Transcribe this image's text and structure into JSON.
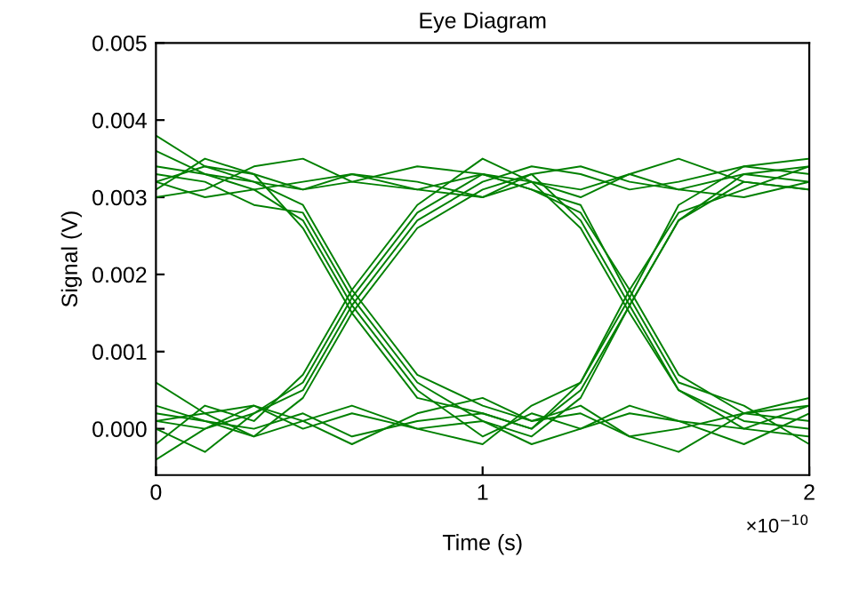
{
  "chart_data": {
    "type": "line",
    "title": "Eye Diagram",
    "xlabel": "Time (s)",
    "ylabel": "Signal (V)",
    "annotations": [
      "×10$^{−10}$"
    ],
    "x": [
      0,
      0.15,
      0.3,
      0.45,
      0.6,
      0.8,
      1.0,
      1.15,
      1.3,
      1.45,
      1.6,
      1.8,
      2.0
    ],
    "xlim": [
      0,
      2
    ],
    "xticks": [
      0,
      1,
      2
    ],
    "ylim": [
      -0.0006,
      0.005
    ],
    "yticks": [
      {
        "value": 0,
        "label": "0.000"
      },
      {
        "value": 0.001,
        "label": "0.001"
      },
      {
        "value": 0.002,
        "label": "0.002"
      },
      {
        "value": 0.003,
        "label": "0.003"
      },
      {
        "value": 0.004,
        "label": "0.004"
      },
      {
        "value": 0.005,
        "label": "0.005"
      }
    ],
    "grid": false,
    "legend": false,
    "marker": "none",
    "line_style": "solid",
    "series": [
      {
        "color": "#008000",
        "values": [
          0.0034,
          0.0033,
          0.0032,
          0.0031,
          0.0033,
          0.0032,
          0.003,
          0.0033,
          0.0034,
          0.0032,
          0.0031,
          0.0033,
          0.0034
        ]
      },
      {
        "color": "#008000",
        "values": [
          0.003,
          0.0031,
          0.0034,
          0.0035,
          0.0032,
          0.0031,
          0.0033,
          0.0032,
          0.003,
          0.0033,
          0.0035,
          0.0032,
          0.0031
        ]
      },
      {
        "color": "#008000",
        "values": [
          0.0032,
          0.0034,
          0.0033,
          0.0031,
          0.0032,
          0.0034,
          0.0033,
          0.0031,
          0.0028,
          0.0018,
          0.0007,
          0.0002,
          0.0001
        ]
      },
      {
        "color": "#008000",
        "values": [
          0.0036,
          0.0033,
          0.0031,
          0.0032,
          0.0033,
          0.0031,
          0.003,
          0.0032,
          0.0026,
          0.0015,
          0.0005,
          0.0,
          0.0003
        ]
      },
      {
        "color": "#008000",
        "values": [
          0.0033,
          0.0032,
          0.0029,
          0.0028,
          0.0017,
          0.0006,
          0.0001,
          -0.0001,
          0.0004,
          0.0016,
          0.0027,
          0.0033,
          0.0032
        ]
      },
      {
        "color": "#008000",
        "values": [
          0.0031,
          0.0035,
          0.0033,
          0.0026,
          0.0015,
          0.0004,
          0.0002,
          0.0,
          0.0006,
          0.0018,
          0.0028,
          0.0031,
          0.0034
        ]
      },
      {
        "color": "#008000",
        "values": [
          0.0032,
          0.003,
          0.0031,
          0.0027,
          0.0016,
          0.0005,
          -0.0001,
          0.0002,
          0.0,
          0.0003,
          0.0001,
          -0.0002,
          0.0002
        ]
      },
      {
        "color": "#008000",
        "values": [
          0.0038,
          0.0034,
          0.0032,
          0.0029,
          0.0018,
          0.0007,
          0.0003,
          0.0001,
          0.0002,
          -0.0001,
          0.0,
          0.0002,
          0.0004
        ]
      },
      {
        "color": "#008000",
        "values": [
          0.0001,
          0.0,
          0.0002,
          0.0005,
          0.0016,
          0.0027,
          0.0032,
          0.0034,
          0.0033,
          0.0031,
          0.0032,
          0.0034,
          0.0033
        ]
      },
      {
        "color": "#008000",
        "values": [
          -0.0002,
          0.0003,
          0.0001,
          0.0007,
          0.0018,
          0.0029,
          0.0035,
          0.0032,
          0.0031,
          0.0033,
          0.0031,
          0.003,
          0.0032
        ]
      },
      {
        "color": "#008000",
        "values": [
          0.0002,
          0.0001,
          -0.0001,
          0.0004,
          0.0015,
          0.0026,
          0.0031,
          0.0033,
          0.0027,
          0.0016,
          0.0005,
          0.0001,
          0.0
        ]
      },
      {
        "color": "#008000",
        "values": [
          0.0,
          -0.0003,
          0.0002,
          0.0006,
          0.0017,
          0.0028,
          0.0033,
          0.0031,
          0.0029,
          0.0017,
          0.0006,
          0.0003,
          -0.0002
        ]
      },
      {
        "color": "#008000",
        "values": [
          0.0003,
          0.0001,
          0.0,
          0.0002,
          -0.0001,
          0.0001,
          0.0002,
          0.0,
          0.0005,
          0.0016,
          0.0027,
          0.0032,
          0.0031
        ]
      },
      {
        "color": "#008000",
        "values": [
          0.0006,
          0.0002,
          0.0003,
          0.0,
          0.0002,
          0.0,
          -0.0002,
          0.0003,
          0.0006,
          0.0017,
          0.0029,
          0.0034,
          0.0035
        ]
      },
      {
        "color": "#008000",
        "values": [
          0.0001,
          0.0002,
          -0.0001,
          0.0001,
          0.0003,
          0.0,
          0.0001,
          -0.0002,
          0.0,
          0.0002,
          0.0001,
          0.0,
          -0.0001
        ]
      },
      {
        "color": "#008000",
        "values": [
          -0.0004,
          0.0,
          0.0003,
          0.0001,
          -0.0002,
          0.0002,
          0.0004,
          0.0001,
          0.0003,
          -0.0001,
          -0.0003,
          0.0002,
          0.0003
        ]
      }
    ]
  }
}
